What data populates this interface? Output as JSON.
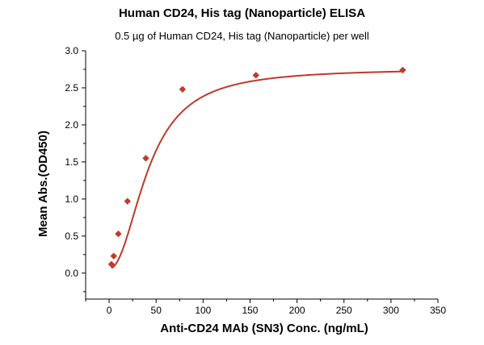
{
  "chart_data": {
    "type": "scatter",
    "title": "Human CD24, His tag (Nanoparticle) ELISA",
    "subtitle": "0.5 µg of Human CD24, His tag (Nanoparticle) per well",
    "xlabel": "Anti-CD24 MAb (SN3) Conc. (ng/mL)",
    "ylabel": "Mean Abs.(OD450)",
    "xlim": [
      -25,
      350
    ],
    "ylim": [
      -0.35,
      3.0
    ],
    "xticks": [
      0,
      50,
      100,
      150,
      200,
      250,
      300,
      350
    ],
    "yticks": [
      0.0,
      0.5,
      1.0,
      1.5,
      2.0,
      2.5,
      3.0
    ],
    "xtick_labels": [
      "0",
      "50",
      "100",
      "150",
      "200",
      "250",
      "300",
      "350"
    ],
    "ytick_labels": [
      "0.0",
      "0.5",
      "1.0",
      "1.5",
      "2.0",
      "2.5",
      "3.0"
    ],
    "series": [
      {
        "marker": "diamond",
        "color": "#c0392b",
        "x": [
          2.44,
          4.88,
          9.77,
          19.53,
          39.06,
          78.13,
          156.25,
          312.5
        ],
        "y": [
          0.12,
          0.23,
          0.53,
          0.97,
          1.55,
          2.48,
          2.67,
          2.74
        ]
      }
    ],
    "fit_curve": {
      "color": "#c0392b",
      "model": "4PL"
    },
    "grid": false,
    "legend": "none"
  }
}
